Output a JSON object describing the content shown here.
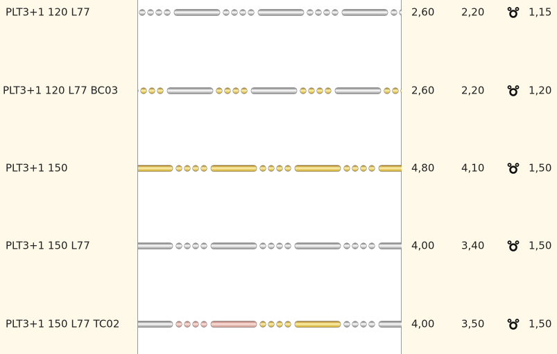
{
  "table": {
    "rows": [
      [
        "PLT3+1 120 L77",
        "2,60",
        "2,20",
        "1,15"
      ],
      [
        "PLT3+1 120 L77 BC03",
        "2,60",
        "2,20",
        "1,20"
      ],
      [
        "PLT3+1 150",
        "4,80",
        "4,10",
        "1,50"
      ],
      [
        "PLT3+1 150 L77",
        "4,00",
        "3,40",
        "1,50"
      ],
      [
        "PLT3+1 150 L77 TC02",
        "4,00",
        "3,50",
        "1,50"
      ]
    ]
  }
}
